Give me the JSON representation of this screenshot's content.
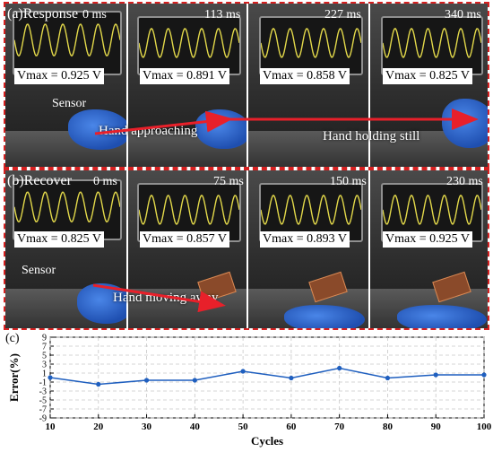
{
  "panel_a": {
    "label": "(a)Response",
    "frames": [
      {
        "time": "0 ms",
        "vmax": "Vmax = 0.925 V"
      },
      {
        "time": "113 ms",
        "vmax": "Vmax = 0.891 V"
      },
      {
        "time": "227 ms",
        "vmax": "Vmax = 0.858 V"
      },
      {
        "time": "340 ms",
        "vmax": "Vmax = 0.825 V"
      }
    ],
    "sensor_label": "Sensor",
    "annotation_1": "Hand approaching",
    "annotation_2": "Hand holding still"
  },
  "panel_b": {
    "label": "(b)Recover",
    "frames": [
      {
        "time": "0 ms",
        "vmax": "Vmax = 0.825 V"
      },
      {
        "time": "75 ms",
        "vmax": "Vmax = 0.857 V"
      },
      {
        "time": "150 ms",
        "vmax": "Vmax = 0.893 V"
      },
      {
        "time": "230 ms",
        "vmax": "Vmax = 0.925 V"
      }
    ],
    "sensor_label": "Sensor",
    "annotation": "Hand moving away"
  },
  "panel_c": {
    "label": "(c)"
  },
  "colors": {
    "dash_border": "#d62020",
    "arrow": "#e8202a",
    "series": "#1f5fbf",
    "trace": "#e2d84a",
    "glove": "#2f6fd8"
  },
  "chart_data": {
    "type": "line",
    "xlabel": "Cycles",
    "ylabel": "Error(%)",
    "x": [
      10,
      20,
      30,
      40,
      50,
      60,
      70,
      80,
      90,
      100
    ],
    "series": [
      {
        "values": [
          0.0,
          -1.5,
          -0.6,
          -0.6,
          1.4,
          -0.1,
          2.1,
          -0.1,
          0.6,
          0.6
        ]
      }
    ],
    "xlim": [
      10,
      100
    ],
    "ylim": [
      -9,
      9
    ],
    "xticks": [
      "10",
      "20",
      "30",
      "40",
      "50",
      "60",
      "70",
      "80",
      "90",
      "100"
    ],
    "yticks": [
      "-9",
      "-7",
      "-5",
      "-3",
      "-1",
      "1",
      "3",
      "5",
      "7",
      "9"
    ],
    "grid": true,
    "marker": "circle"
  }
}
